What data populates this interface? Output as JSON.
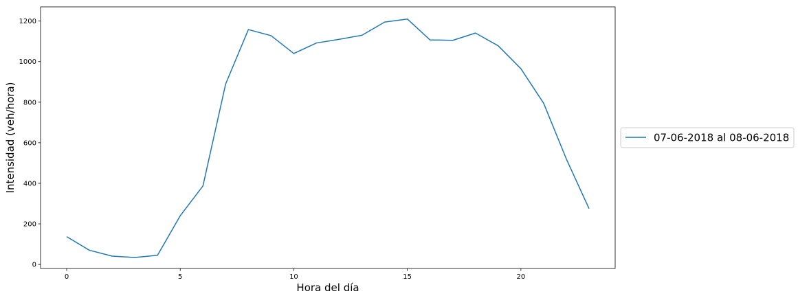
{
  "chart_data": {
    "type": "line",
    "title": "",
    "xlabel": "Hora del día",
    "ylabel": "Intensidad (veh/hora)",
    "xlim": [
      -1.15,
      24.15
    ],
    "ylim": [
      -20,
      1270
    ],
    "xticks": [
      0,
      5,
      10,
      15,
      20
    ],
    "yticks": [
      0,
      200,
      400,
      600,
      800,
      1000,
      1200
    ],
    "grid": false,
    "legend_position": "right-outside",
    "series": [
      {
        "name": "07-06-2018 al 08-06-2018",
        "color": "#1f77b4",
        "x": [
          0,
          1,
          2,
          3,
          4,
          5,
          6,
          7,
          8,
          9,
          10,
          11,
          12,
          13,
          14,
          15,
          16,
          17,
          18,
          19,
          20,
          21,
          22,
          23
        ],
        "y": [
          137,
          70,
          41,
          34,
          45,
          240,
          387,
          890,
          1158,
          1128,
          1040,
          1092,
          1110,
          1130,
          1195,
          1210,
          1107,
          1105,
          1141,
          1078,
          965,
          795,
          520,
          275
        ]
      }
    ]
  }
}
